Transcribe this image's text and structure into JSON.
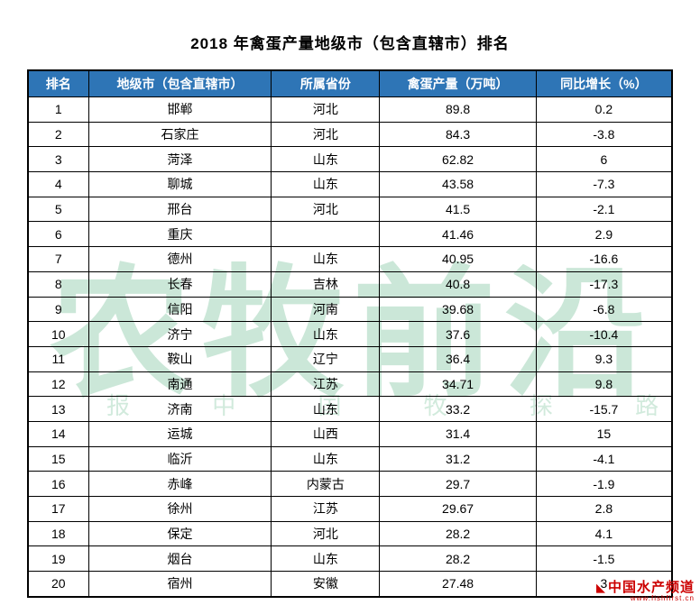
{
  "title": "2018 年禽蛋产量地级市（包含直辖市）排名",
  "chart_data": {
    "type": "table",
    "title": "2018 年禽蛋产量地级市（包含直辖市）排名",
    "columns": [
      "排名",
      "地级市（包含直辖市）",
      "所属省份",
      "禽蛋产量（万吨）",
      "同比增长（%）"
    ],
    "rows": [
      [
        "1",
        "邯郸",
        "河北",
        "89.8",
        "0.2"
      ],
      [
        "2",
        "石家庄",
        "河北",
        "84.3",
        "-3.8"
      ],
      [
        "3",
        "菏泽",
        "山东",
        "62.82",
        "6"
      ],
      [
        "4",
        "聊城",
        "山东",
        "43.58",
        "-7.3"
      ],
      [
        "5",
        "邢台",
        "河北",
        "41.5",
        "-2.1"
      ],
      [
        "6",
        "重庆",
        "",
        "41.46",
        "2.9"
      ],
      [
        "7",
        "德州",
        "山东",
        "40.95",
        "-16.6"
      ],
      [
        "8",
        "长春",
        "吉林",
        "40.8",
        "-17.3"
      ],
      [
        "9",
        "信阳",
        "河南",
        "39.68",
        "-6.8"
      ],
      [
        "10",
        "济宁",
        "山东",
        "37.6",
        "-10.4"
      ],
      [
        "11",
        "鞍山",
        "辽宁",
        "36.4",
        "9.3"
      ],
      [
        "12",
        "南通",
        "江苏",
        "34.71",
        "9.8"
      ],
      [
        "13",
        "济南",
        "山东",
        "33.2",
        "-15.7"
      ],
      [
        "14",
        "运城",
        "山西",
        "31.4",
        "15"
      ],
      [
        "15",
        "临沂",
        "山东",
        "31.2",
        "-4.1"
      ],
      [
        "16",
        "赤峰",
        "内蒙古",
        "29.7",
        "-1.9"
      ],
      [
        "17",
        "徐州",
        "江苏",
        "29.67",
        "2.8"
      ],
      [
        "18",
        "保定",
        "河北",
        "28.2",
        "4.1"
      ],
      [
        "19",
        "烟台",
        "山东",
        "28.2",
        "-1.5"
      ],
      [
        "20",
        "宿州",
        "安徽",
        "27.48",
        "3"
      ]
    ]
  },
  "watermark": {
    "main": "农牧前沿",
    "sub": "报  中 国  牧  探 路",
    "color": "#8ecbaa"
  },
  "footer_logo": {
    "name": "中国水产频道",
    "url_text": "www.fishfirst.cn",
    "color": "#cc0000"
  },
  "colors": {
    "header_bg": "#2e75b6",
    "header_text": "#ffffff",
    "border": "#000000"
  }
}
